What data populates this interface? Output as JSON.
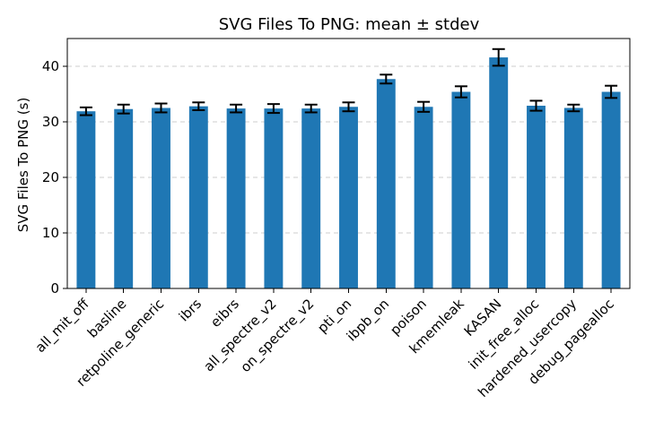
{
  "chart_data": {
    "type": "bar",
    "title": "SVG Files To PNG: mean ± stdev",
    "xlabel": "",
    "ylabel": "SVG Files To PNG (s)",
    "categories": [
      "all_mit_off",
      "basline",
      "retpoline_generic",
      "ibrs",
      "eibrs",
      "all_spectre_v2",
      "on_spectre_v2",
      "pti_on",
      "ibpb_on",
      "poison",
      "kmemleak",
      "KASAN",
      "init_free_alloc",
      "hardened_usercopy",
      "debug_pagealloc"
    ],
    "series": [
      {
        "values": [
          31.9,
          32.3,
          32.5,
          32.8,
          32.4,
          32.4,
          32.4,
          32.7,
          37.7,
          32.7,
          35.4,
          41.6,
          32.9,
          32.5,
          35.4
        ],
        "errors": [
          0.7,
          0.8,
          0.8,
          0.7,
          0.7,
          0.8,
          0.7,
          0.8,
          0.8,
          0.9,
          1.0,
          1.5,
          0.9,
          0.6,
          1.1
        ]
      }
    ],
    "ylim": [
      0,
      45
    ],
    "yticks": [
      0,
      10,
      20,
      30,
      40
    ],
    "grid": "y-dashed",
    "bar_color": "#1f77b4",
    "error_color": "#000000"
  }
}
